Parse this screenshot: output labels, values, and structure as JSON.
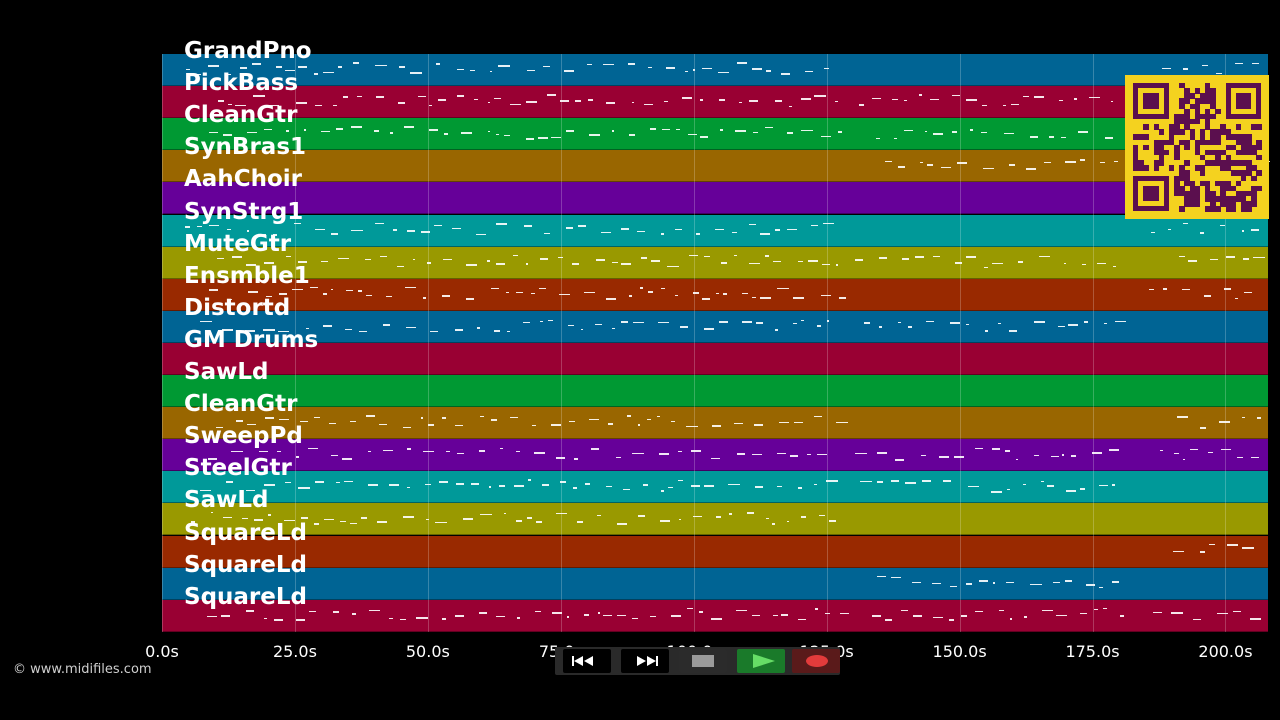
{
  "tracks": [
    {
      "name": "GrandPno",
      "color": "#006494"
    },
    {
      "name": "PickBass",
      "color": "#990033"
    },
    {
      "name": "CleanGtr",
      "color": "#009933"
    },
    {
      "name": "SynBras1",
      "color": "#996600"
    },
    {
      "name": "AahChoir",
      "color": "#660099"
    },
    {
      "name": "SynStrg1",
      "color": "#009999"
    },
    {
      "name": "MuteGtr",
      "color": "#999900"
    },
    {
      "name": "Ensmble1",
      "color": "#992900"
    },
    {
      "name": "Distortd",
      "color": "#006494"
    },
    {
      "name": "GM Drums",
      "color": "#990033"
    },
    {
      "name": "SawLd",
      "color": "#009933"
    },
    {
      "name": "CleanGtr",
      "color": "#996600"
    },
    {
      "name": "SweepPd",
      "color": "#660099"
    },
    {
      "name": "SteelGtr",
      "color": "#009999"
    },
    {
      "name": "SawLd",
      "color": "#999900"
    },
    {
      "name": "SquareLd",
      "color": "#992900"
    },
    {
      "name": "SquareLd",
      "color": "#006494"
    },
    {
      "name": "SquareLd",
      "color": "#990033"
    }
  ],
  "timeline": {
    "max_seconds": 208,
    "ticks": [
      "0.0s",
      "25.0s",
      "50.0s",
      "75.0s",
      "100.0s",
      "125.0s",
      "150.0s",
      "175.0s",
      "200.0s"
    ],
    "tick_values": [
      0,
      25,
      50,
      75,
      100,
      125,
      150,
      175,
      200
    ]
  },
  "credit": "© www.midifiles.com",
  "transport": {
    "buttons": [
      {
        "name": "rewind-button",
        "icon": "rewind-icon",
        "color": "#000000"
      },
      {
        "name": "fast-forward-button",
        "icon": "fast-forward-icon",
        "color": "#000000"
      },
      {
        "name": "stop-button",
        "icon": "stop-icon",
        "color": "#2b2b2b"
      },
      {
        "name": "play-button",
        "icon": "play-icon",
        "color": "#1a7a2a"
      },
      {
        "name": "record-button",
        "icon": "record-icon",
        "color": "#5a1a1a"
      }
    ]
  },
  "qr_code": {
    "fg": "#5b0f4e",
    "bg": "#f4d21f"
  }
}
